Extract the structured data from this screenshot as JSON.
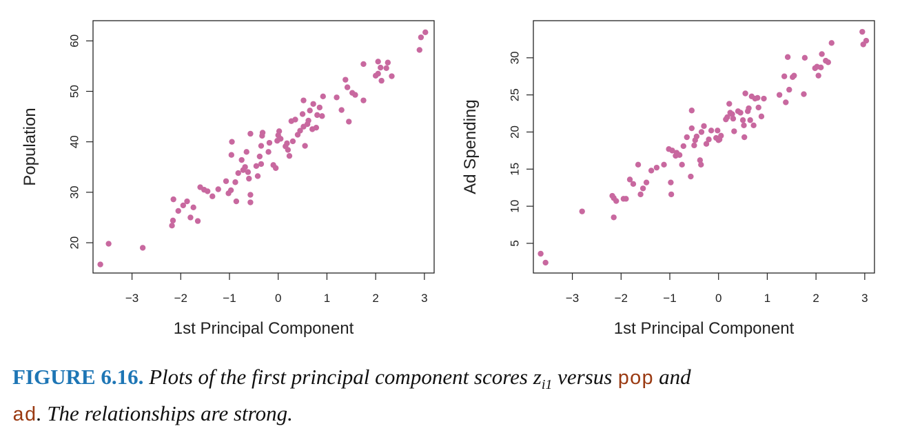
{
  "chart_data": [
    {
      "type": "scatter",
      "xlabel": "1st Principal Component",
      "ylabel": "Population",
      "xlim": [
        -3.8,
        3.2
      ],
      "ylim": [
        14,
        64
      ],
      "xticks": [
        -3,
        -2,
        -1,
        0,
        1,
        2,
        3
      ],
      "yticks": [
        20,
        30,
        40,
        50,
        60
      ],
      "xtick_labels": [
        "−3",
        "−2",
        "−1",
        "0",
        "1",
        "2",
        "3"
      ],
      "ytick_labels": [
        "20",
        "30",
        "40",
        "50",
        "60"
      ],
      "point_color": "#c8689f",
      "points": [
        [
          -3.65,
          15.7
        ],
        [
          -3.48,
          19.8
        ],
        [
          -2.78,
          19.0
        ],
        [
          -2.18,
          23.4
        ],
        [
          -2.16,
          24.4
        ],
        [
          -2.15,
          28.6
        ],
        [
          -2.05,
          26.3
        ],
        [
          -1.95,
          27.4
        ],
        [
          -1.87,
          28.2
        ],
        [
          -1.8,
          25.0
        ],
        [
          -1.74,
          27.0
        ],
        [
          -1.65,
          24.3
        ],
        [
          -1.6,
          31.0
        ],
        [
          -1.52,
          30.5
        ],
        [
          -1.45,
          30.2
        ],
        [
          -1.35,
          29.2
        ],
        [
          -1.23,
          30.6
        ],
        [
          -1.07,
          32.2
        ],
        [
          -1.02,
          29.8
        ],
        [
          -0.97,
          30.4
        ],
        [
          -0.96,
          37.4
        ],
        [
          -0.95,
          40.0
        ],
        [
          -0.88,
          32.0
        ],
        [
          -0.86,
          28.2
        ],
        [
          -0.82,
          33.8
        ],
        [
          -0.75,
          36.4
        ],
        [
          -0.72,
          34.4
        ],
        [
          -0.68,
          35.0
        ],
        [
          -0.65,
          38.0
        ],
        [
          -0.62,
          34.0
        ],
        [
          -0.6,
          32.7
        ],
        [
          -0.57,
          29.5
        ],
        [
          -0.57,
          28.0
        ],
        [
          -0.57,
          41.6
        ],
        [
          -0.45,
          35.2
        ],
        [
          -0.42,
          33.2
        ],
        [
          -0.38,
          37.1
        ],
        [
          -0.35,
          35.6
        ],
        [
          -0.35,
          39.2
        ],
        [
          -0.33,
          41.2
        ],
        [
          -0.32,
          41.8
        ],
        [
          -0.2,
          38.0
        ],
        [
          -0.18,
          39.8
        ],
        [
          -0.1,
          35.4
        ],
        [
          -0.05,
          34.8
        ],
        [
          -0.02,
          40.2
        ],
        [
          0.0,
          41.3
        ],
        [
          0.02,
          42.1
        ],
        [
          0.05,
          40.6
        ],
        [
          0.15,
          39.1
        ],
        [
          0.18,
          39.7
        ],
        [
          0.2,
          38.4
        ],
        [
          0.23,
          37.2
        ],
        [
          0.27,
          44.1
        ],
        [
          0.3,
          40.1
        ],
        [
          0.35,
          44.4
        ],
        [
          0.4,
          41.4
        ],
        [
          0.45,
          42.2
        ],
        [
          0.5,
          45.5
        ],
        [
          0.52,
          43.0
        ],
        [
          0.52,
          48.2
        ],
        [
          0.55,
          39.2
        ],
        [
          0.6,
          43.5
        ],
        [
          0.62,
          44.2
        ],
        [
          0.65,
          46.2
        ],
        [
          0.7,
          42.5
        ],
        [
          0.72,
          47.5
        ],
        [
          0.78,
          42.8
        ],
        [
          0.8,
          45.3
        ],
        [
          0.85,
          46.8
        ],
        [
          0.9,
          45.1
        ],
        [
          0.92,
          49.0
        ],
        [
          1.2,
          48.8
        ],
        [
          1.3,
          46.3
        ],
        [
          1.38,
          52.3
        ],
        [
          1.42,
          50.8
        ],
        [
          1.45,
          44.0
        ],
        [
          1.52,
          49.7
        ],
        [
          1.58,
          49.3
        ],
        [
          1.75,
          48.2
        ],
        [
          1.75,
          55.4
        ],
        [
          2.0,
          53.1
        ],
        [
          2.05,
          53.5
        ],
        [
          2.05,
          55.9
        ],
        [
          2.1,
          54.7
        ],
        [
          2.12,
          52.1
        ],
        [
          2.22,
          54.6
        ],
        [
          2.25,
          55.7
        ],
        [
          2.33,
          53.0
        ],
        [
          2.9,
          58.2
        ],
        [
          2.93,
          60.7
        ],
        [
          3.02,
          61.7
        ]
      ]
    },
    {
      "type": "scatter",
      "xlabel": "1st Principal Component",
      "ylabel": "Ad Spending",
      "xlim": [
        -3.8,
        3.2
      ],
      "ylim": [
        1,
        35
      ],
      "xticks": [
        -3,
        -2,
        -1,
        0,
        1,
        2,
        3
      ],
      "yticks": [
        5,
        10,
        15,
        20,
        25,
        30
      ],
      "xtick_labels": [
        "−3",
        "−2",
        "−1",
        "0",
        "1",
        "2",
        "3"
      ],
      "ytick_labels": [
        "5",
        "10",
        "15",
        "20",
        "25",
        "30"
      ],
      "point_color": "#c8689f",
      "points": [
        [
          -3.65,
          3.6
        ],
        [
          -3.55,
          2.4
        ],
        [
          -2.8,
          9.3
        ],
        [
          -2.18,
          11.4
        ],
        [
          -2.15,
          8.5
        ],
        [
          -2.15,
          11.1
        ],
        [
          -2.1,
          10.7
        ],
        [
          -1.95,
          11.0
        ],
        [
          -1.9,
          11.0
        ],
        [
          -1.82,
          13.6
        ],
        [
          -1.75,
          13.0
        ],
        [
          -1.65,
          15.6
        ],
        [
          -1.6,
          11.6
        ],
        [
          -1.55,
          12.4
        ],
        [
          -1.48,
          13.2
        ],
        [
          -1.38,
          14.8
        ],
        [
          -1.27,
          15.2
        ],
        [
          -1.12,
          15.6
        ],
        [
          -1.02,
          17.7
        ],
        [
          -0.98,
          13.2
        ],
        [
          -0.97,
          11.6
        ],
        [
          -0.95,
          17.5
        ],
        [
          -0.88,
          16.8
        ],
        [
          -0.86,
          17.2
        ],
        [
          -0.8,
          16.9
        ],
        [
          -0.75,
          15.6
        ],
        [
          -0.72,
          18.1
        ],
        [
          -0.65,
          19.3
        ],
        [
          -0.57,
          14.0
        ],
        [
          -0.55,
          20.5
        ],
        [
          -0.55,
          22.9
        ],
        [
          -0.5,
          18.2
        ],
        [
          -0.48,
          18.9
        ],
        [
          -0.45,
          19.4
        ],
        [
          -0.38,
          16.2
        ],
        [
          -0.36,
          15.6
        ],
        [
          -0.35,
          20.0
        ],
        [
          -0.3,
          20.8
        ],
        [
          -0.25,
          18.4
        ],
        [
          -0.2,
          19.0
        ],
        [
          -0.15,
          20.2
        ],
        [
          -0.05,
          19.2
        ],
        [
          -0.02,
          20.2
        ],
        [
          0.0,
          18.9
        ],
        [
          0.02,
          19.0
        ],
        [
          0.05,
          19.5
        ],
        [
          0.15,
          21.7
        ],
        [
          0.18,
          22.0
        ],
        [
          0.22,
          23.8
        ],
        [
          0.24,
          22.6
        ],
        [
          0.28,
          22.4
        ],
        [
          0.3,
          21.8
        ],
        [
          0.32,
          20.1
        ],
        [
          0.4,
          22.8
        ],
        [
          0.45,
          22.6
        ],
        [
          0.5,
          21.6
        ],
        [
          0.52,
          20.9
        ],
        [
          0.53,
          19.3
        ],
        [
          0.55,
          25.2
        ],
        [
          0.6,
          22.8
        ],
        [
          0.62,
          23.2
        ],
        [
          0.65,
          21.6
        ],
        [
          0.68,
          24.8
        ],
        [
          0.72,
          20.9
        ],
        [
          0.75,
          24.5
        ],
        [
          0.8,
          24.6
        ],
        [
          0.82,
          23.3
        ],
        [
          0.88,
          22.1
        ],
        [
          0.93,
          24.5
        ],
        [
          1.25,
          25.0
        ],
        [
          1.35,
          27.5
        ],
        [
          1.38,
          24.0
        ],
        [
          1.42,
          30.1
        ],
        [
          1.45,
          25.7
        ],
        [
          1.52,
          27.4
        ],
        [
          1.55,
          27.6
        ],
        [
          1.75,
          25.1
        ],
        [
          1.77,
          30.0
        ],
        [
          1.98,
          28.6
        ],
        [
          2.02,
          28.8
        ],
        [
          2.05,
          27.6
        ],
        [
          2.1,
          28.7
        ],
        [
          2.12,
          30.5
        ],
        [
          2.2,
          29.6
        ],
        [
          2.25,
          29.4
        ],
        [
          2.32,
          32.0
        ],
        [
          2.95,
          33.5
        ],
        [
          2.97,
          31.8
        ],
        [
          3.03,
          32.3
        ]
      ]
    }
  ],
  "caption": {
    "figure_label": "FIGURE 6.16.",
    "text_1": "Plots of the first principal component scores ",
    "math_var": "z",
    "math_sub": "i1",
    "text_2": " versus ",
    "code_1": "pop",
    "text_3": " and ",
    "code_2": "ad",
    "text_4": ". The relationships are strong."
  }
}
